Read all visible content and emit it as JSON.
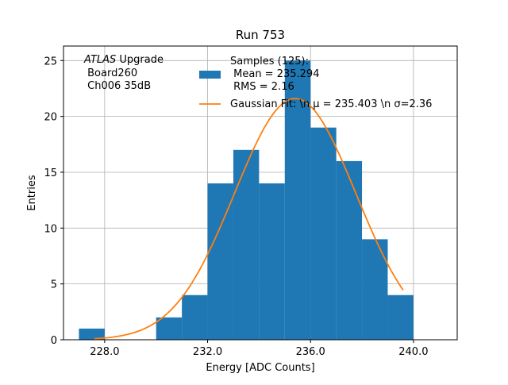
{
  "chart_data": {
    "type": "bar",
    "title": "Run 753",
    "xlabel": "Energy [ADC Counts]",
    "ylabel": "Entries",
    "xlim": [
      226.4,
      241.7
    ],
    "ylim": [
      0,
      26.3
    ],
    "grid": true,
    "x_ticks": [
      228.0,
      232.0,
      236.0,
      240.0
    ],
    "x_tick_labels": [
      "228.0",
      "232.0",
      "236.0",
      "240.0"
    ],
    "y_ticks": [
      0,
      5,
      10,
      15,
      20,
      25
    ],
    "y_tick_labels": [
      "0",
      "5",
      "10",
      "15",
      "20",
      "25"
    ],
    "bin_edges": [
      227.0,
      228.0,
      229.0,
      230.0,
      231.0,
      232.0,
      233.0,
      234.0,
      235.0,
      236.0,
      237.0,
      238.0,
      239.0,
      240.0
    ],
    "counts": [
      1,
      0,
      0,
      2,
      4,
      14,
      17,
      14,
      25,
      19,
      16,
      9,
      4
    ],
    "bar_color": "#1f77b4",
    "fit": {
      "type": "gaussian",
      "mu": 235.403,
      "sigma": 2.36,
      "amplitude": 21.6,
      "x_range": [
        227.6,
        239.6
      ],
      "color": "#ff7f0e"
    },
    "legend": {
      "placement": "top-right",
      "entries": [
        {
          "label_lines": [
            "Samples (125):",
            " Mean = 235.294",
            " RMS = 2.16"
          ],
          "style": "patch",
          "color": "#1f77b4"
        },
        {
          "label_lines": [
            "Gaussian Fit: \\n μ = 235.403 \\n σ=2.36"
          ],
          "style": "line",
          "color": "#ff7f0e"
        }
      ]
    },
    "annotation": {
      "atlas": "ATLAS",
      "upgrade": " Upgrade",
      "board": " Board260",
      "channel": " Ch006 35dB"
    }
  }
}
